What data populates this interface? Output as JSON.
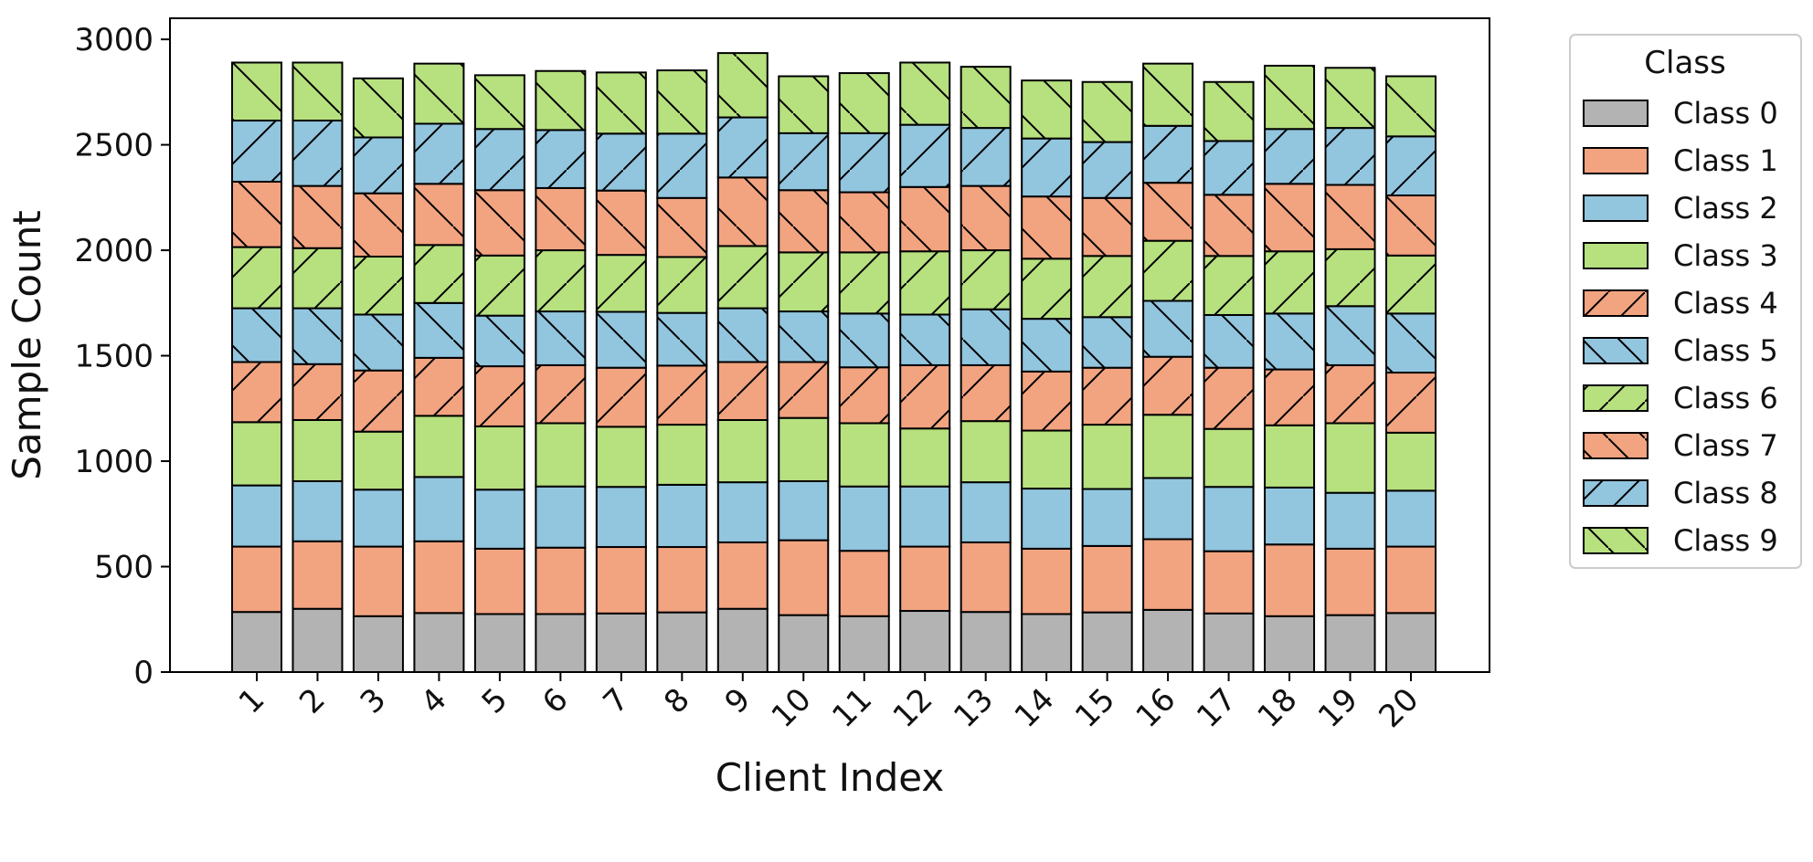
{
  "chart_data": {
    "type": "bar",
    "stacked": true,
    "title": "",
    "xlabel": "Client Index",
    "ylabel": "Sample Count",
    "ylim": [
      0,
      3100
    ],
    "yticks": [
      0,
      500,
      1000,
      1500,
      2000,
      2500,
      3000
    ],
    "grid": false,
    "categories": [
      "1",
      "2",
      "3",
      "4",
      "5",
      "6",
      "7",
      "8",
      "9",
      "10",
      "11",
      "12",
      "13",
      "14",
      "15",
      "16",
      "17",
      "18",
      "19",
      "20"
    ],
    "legend": {
      "title": "Class",
      "placement": "outside-right"
    },
    "series": [
      {
        "name": "Class 0",
        "color": "#b3b3b3",
        "hatch": "none",
        "values": [
          285,
          300,
          265,
          280,
          275,
          275,
          278,
          283,
          300,
          270,
          265,
          290,
          285,
          275,
          283,
          295,
          278,
          265,
          270,
          280
        ]
      },
      {
        "name": "Class 1",
        "color": "#f2a380",
        "hatch": "none",
        "values": [
          310,
          320,
          330,
          340,
          310,
          315,
          315,
          310,
          315,
          355,
          310,
          305,
          330,
          310,
          315,
          335,
          295,
          340,
          315,
          315
        ]
      },
      {
        "name": "Class 2",
        "color": "#92c5de",
        "hatch": "none",
        "values": [
          290,
          285,
          270,
          305,
          280,
          290,
          285,
          295,
          285,
          280,
          305,
          285,
          285,
          285,
          270,
          290,
          305,
          270,
          265,
          265
        ]
      },
      {
        "name": "Class 3",
        "color": "#b7e07f",
        "hatch": "none",
        "values": [
          300,
          290,
          275,
          290,
          300,
          300,
          285,
          285,
          295,
          300,
          300,
          275,
          290,
          275,
          305,
          300,
          275,
          295,
          330,
          275
        ]
      },
      {
        "name": "Class 4",
        "color": "#f2a380",
        "hatch": "forward",
        "values": [
          285,
          265,
          290,
          275,
          285,
          275,
          280,
          280,
          275,
          265,
          265,
          300,
          265,
          280,
          270,
          275,
          290,
          265,
          275,
          285
        ]
      },
      {
        "name": "Class 5",
        "color": "#92c5de",
        "hatch": "back",
        "values": [
          255,
          265,
          265,
          260,
          240,
          255,
          265,
          250,
          255,
          240,
          255,
          240,
          265,
          250,
          240,
          265,
          250,
          265,
          280,
          280
        ]
      },
      {
        "name": "Class 6",
        "color": "#b7e07f",
        "hatch": "forward",
        "values": [
          290,
          285,
          275,
          275,
          285,
          290,
          270,
          265,
          295,
          280,
          290,
          300,
          280,
          285,
          290,
          285,
          280,
          295,
          270,
          275
        ]
      },
      {
        "name": "Class 7",
        "color": "#f2a380",
        "hatch": "back",
        "values": [
          310,
          295,
          300,
          290,
          310,
          295,
          305,
          280,
          325,
          295,
          285,
          305,
          305,
          295,
          275,
          275,
          290,
          320,
          305,
          285
        ]
      },
      {
        "name": "Class 8",
        "color": "#92c5de",
        "hatch": "forward",
        "values": [
          290,
          310,
          265,
          285,
          290,
          275,
          270,
          305,
          285,
          270,
          280,
          295,
          275,
          275,
          265,
          270,
          255,
          260,
          270,
          280
        ]
      },
      {
        "name": "Class 9",
        "color": "#b7e07f",
        "hatch": "back",
        "values": [
          275,
          275,
          280,
          285,
          255,
          280,
          290,
          300,
          305,
          270,
          285,
          295,
          290,
          275,
          285,
          295,
          280,
          300,
          285,
          285
        ]
      }
    ]
  }
}
